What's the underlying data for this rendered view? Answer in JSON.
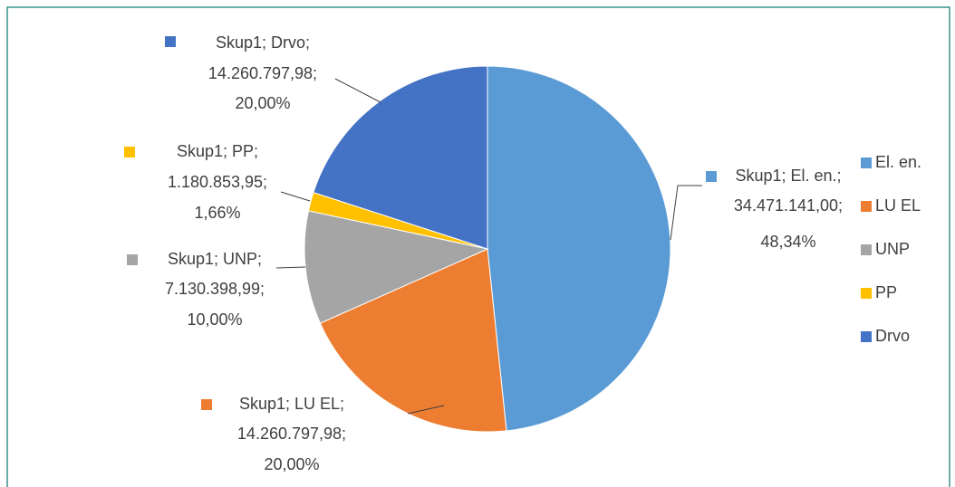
{
  "chart_data": {
    "type": "pie",
    "series_name": "Skup1",
    "label_separator": ";",
    "categories": [
      "El. en.",
      "LU EL",
      "UNP",
      "PP",
      "Drvo"
    ],
    "values": [
      34471141.0,
      14260797.98,
      7130398.99,
      1180853.95,
      14260797.98
    ],
    "value_labels": [
      "34.471.141,00",
      "14.260.797,98",
      "7.130.398,99",
      "1.180.853,95",
      "14.260.797,98"
    ],
    "percentages": [
      48.34,
      20.0,
      10.0,
      1.66,
      20.0
    ],
    "percent_labels": [
      "48,34%",
      "20,00%",
      "10,00%",
      "1,66%",
      "20,00%"
    ],
    "colors": [
      "#5b9bd5",
      "#ed7d31",
      "#a5a5a5",
      "#ffc000",
      "#4472c4"
    ],
    "legend": "right"
  }
}
